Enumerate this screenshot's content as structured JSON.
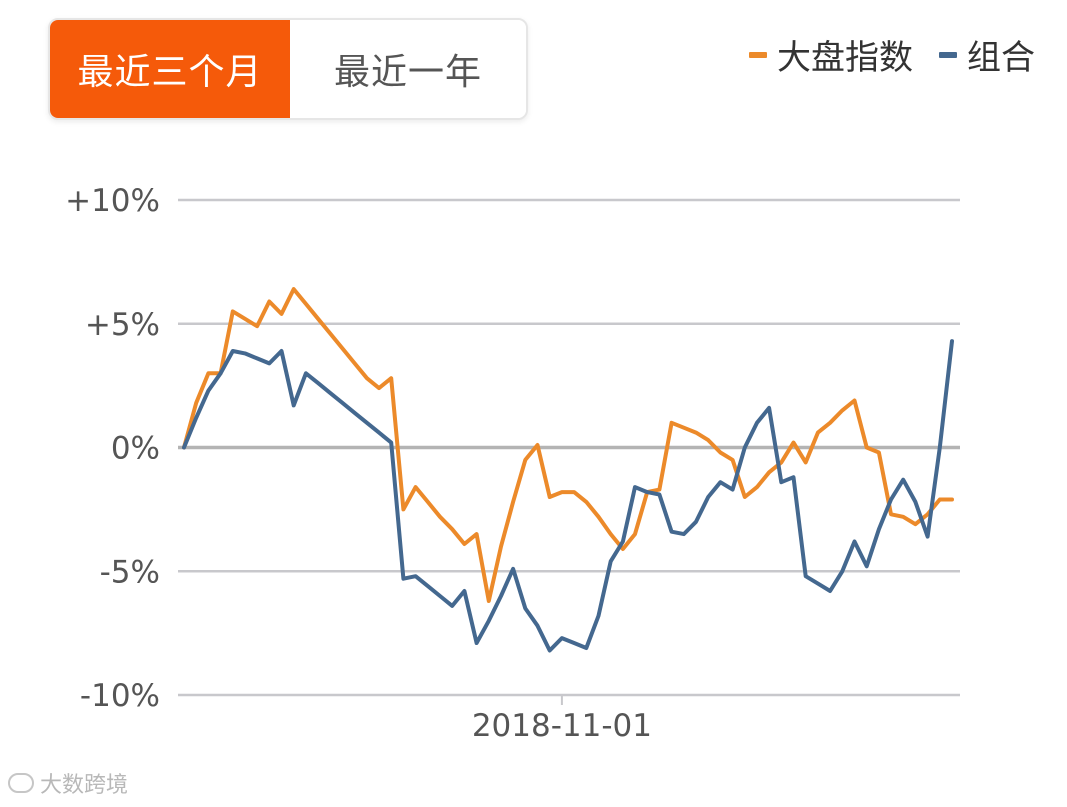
{
  "tabs": [
    {
      "label": "最近三个月",
      "active": true
    },
    {
      "label": "最近一年",
      "active": false
    }
  ],
  "legend": [
    {
      "label": "大盘指数",
      "color": "#ec8a2a"
    },
    {
      "label": "组合",
      "color": "#44688f"
    }
  ],
  "colors": {
    "accent": "#f55a0a",
    "index_line": "#ec8a2a",
    "portfolio_line": "#44688f",
    "grid": "#c8c8cc",
    "zero_line": "#b4b4b4"
  },
  "watermark": "大数跨境",
  "chart_data": {
    "type": "line",
    "title": "",
    "xlabel": "",
    "ylabel": "",
    "ylim": [
      -10,
      10
    ],
    "yticks": [
      {
        "value": 10,
        "label": "+10%"
      },
      {
        "value": 5,
        "label": "+5%"
      },
      {
        "value": 0,
        "label": "0%"
      },
      {
        "value": -5,
        "label": "-5%"
      },
      {
        "value": -10,
        "label": "-10%"
      }
    ],
    "x_count": 64,
    "xticks": [
      {
        "index": 31,
        "label": "2018-11-01"
      }
    ],
    "grid": true,
    "legend_position": "top-right",
    "series": [
      {
        "name": "大盘指数",
        "color": "#ec8a2a",
        "values": [
          0,
          1.8,
          3.0,
          3.0,
          5.5,
          5.2,
          4.9,
          5.9,
          5.4,
          6.4,
          5.8,
          5.2,
          4.6,
          4.0,
          3.4,
          2.8,
          2.4,
          2.8,
          -2.5,
          -1.6,
          -2.2,
          -2.8,
          -3.3,
          -3.9,
          -3.5,
          -6.2,
          -4.0,
          -2.2,
          -0.5,
          0.1,
          -2.0,
          -1.8,
          -1.8,
          -2.2,
          -2.8,
          -3.5,
          -4.1,
          -3.5,
          -1.8,
          -1.7,
          1.0,
          0.8,
          0.6,
          0.3,
          -0.2,
          -0.5,
          -2.0,
          -1.6,
          -1.0,
          -0.6,
          0.2,
          -0.6,
          0.6,
          1.0,
          1.5,
          1.9,
          0.0,
          -0.2,
          -2.7,
          -2.8,
          -3.1,
          -2.7,
          -2.1,
          -2.1
        ]
      },
      {
        "name": "组合",
        "color": "#44688f",
        "values": [
          0,
          1.2,
          2.3,
          3.0,
          3.9,
          3.8,
          3.6,
          3.4,
          3.9,
          1.7,
          3.0,
          2.6,
          2.2,
          1.8,
          1.4,
          1.0,
          0.6,
          0.2,
          -5.3,
          -5.2,
          -5.6,
          -6.0,
          -6.4,
          -5.8,
          -7.9,
          -7.0,
          -6.0,
          -4.9,
          -6.5,
          -7.2,
          -8.2,
          -7.7,
          -7.9,
          -8.1,
          -6.8,
          -4.6,
          -3.8,
          -1.6,
          -1.8,
          -1.9,
          -3.4,
          -3.5,
          -3.0,
          -2.0,
          -1.4,
          -1.7,
          0.0,
          1.0,
          1.6,
          -1.4,
          -1.2,
          -5.2,
          -5.5,
          -5.8,
          -5.0,
          -3.8,
          -4.8,
          -3.3,
          -2.1,
          -1.3,
          -2.2,
          -3.6,
          0.0,
          4.3
        ]
      }
    ]
  }
}
